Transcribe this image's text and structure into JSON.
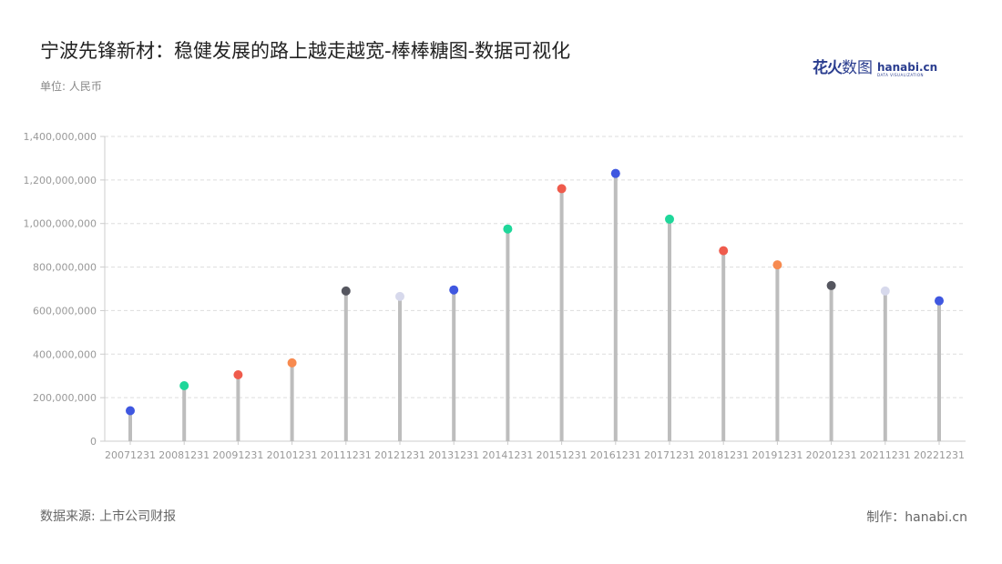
{
  "header": {
    "title": "宁波先锋新材：稳健发展的路上越走越宽-棒棒糖图-数据可视化",
    "unit": "单位: 人民币"
  },
  "logo": {
    "cn_main": "花火",
    "cn_sub": "数图",
    "en": "hanabi.cn",
    "en_sub": "DATA VISUALIZATION"
  },
  "footer": {
    "source": "数据来源: 上市公司财报",
    "credit": "制作：hanabi.cn"
  },
  "colors": {
    "stick": "#bdbdbd",
    "grid": "#dddddd",
    "axis": "#cccccc"
  },
  "chart_data": {
    "type": "lollipop",
    "categories": [
      "20071231",
      "20081231",
      "20091231",
      "20101231",
      "20111231",
      "20121231",
      "20131231",
      "20141231",
      "20151231",
      "20161231",
      "20171231",
      "20181231",
      "20191231",
      "20201231",
      "20211231",
      "20221231"
    ],
    "values": [
      140000000,
      255000000,
      305000000,
      360000000,
      690000000,
      665000000,
      695000000,
      975000000,
      1160000000,
      1230000000,
      1020000000,
      875000000,
      810000000,
      715000000,
      690000000,
      645000000
    ],
    "point_colors": [
      "#3f57e0",
      "#1fd79a",
      "#ef5b4c",
      "#f78a4f",
      "#55565f",
      "#d7d9ec",
      "#3f57e0",
      "#1fd79a",
      "#ef5b4c",
      "#3f57e0",
      "#1fd79a",
      "#ef5b4c",
      "#f78a4f",
      "#55565f",
      "#d7d9ec",
      "#3f57e0"
    ],
    "ylim": [
      0,
      1400000000
    ],
    "yticks": [
      0,
      200000000,
      400000000,
      600000000,
      800000000,
      1000000000,
      1200000000,
      1400000000
    ],
    "ytick_labels": [
      "0",
      "200,000,000",
      "400,000,000",
      "600,000,000",
      "800,000,000",
      "1,000,000,000",
      "1,200,000,000",
      "1,400,000,000"
    ],
    "grid": true
  }
}
